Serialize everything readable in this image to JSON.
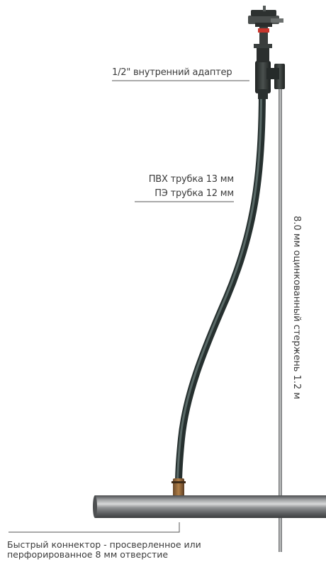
{
  "labels": {
    "adapter": "1/2\" внутренний адаптер",
    "pvc_tube": "ПВХ трубка 13 мм",
    "pe_tube": "ПЭ трубка 12 мм",
    "rod": "8.0 мм оцинкованный стержень 1.2 м",
    "connector_line1": "Быстрый коннектор - просверленное или",
    "connector_line2": "перфорированное 8 мм отверстие"
  },
  "colors": {
    "rod": "#8a8a8a",
    "tube": "#3a4a48",
    "pipe": "#6c6e70",
    "adapter": "#2f3433",
    "nozzle_red": "#c8352c",
    "leader": "#555555"
  }
}
